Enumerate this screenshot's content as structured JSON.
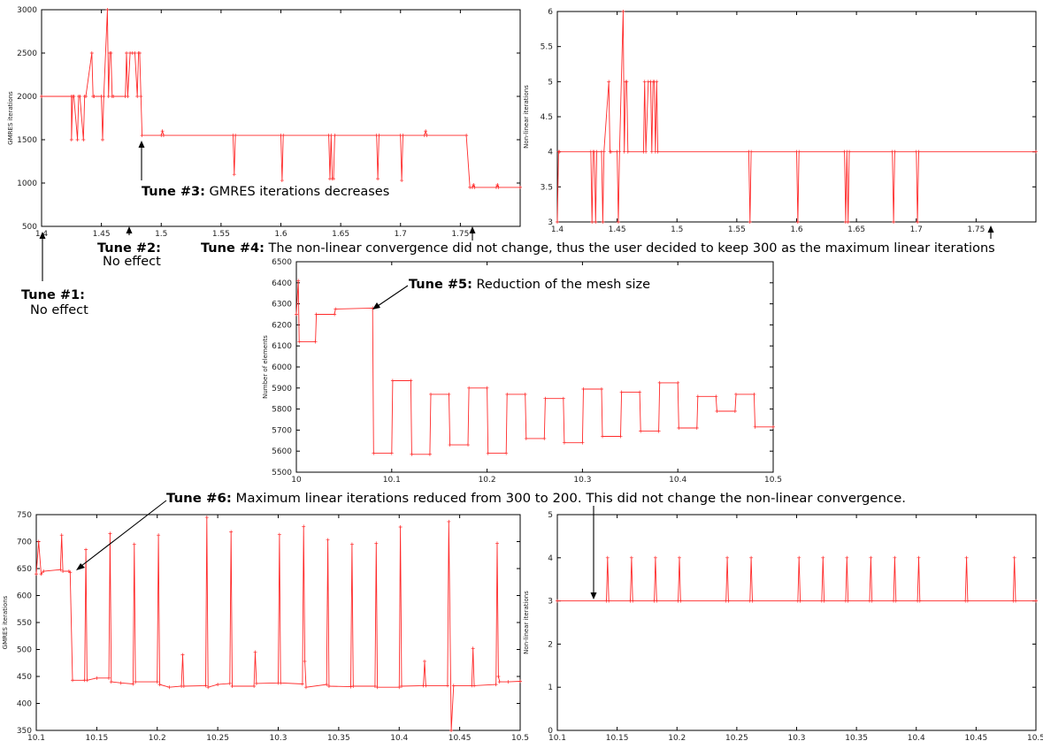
{
  "chart_data": [
    {
      "id": "c1",
      "type": "line",
      "ylabel": "GMRES iterations",
      "xlim": [
        1.4,
        1.8
      ],
      "ylim": [
        500,
        3000
      ],
      "xticks": [
        "1.4",
        "1.45",
        "1.5",
        "1.55",
        "1.6",
        "1.65",
        "1.7",
        "1.75"
      ],
      "yticks": [
        "500",
        "1000",
        "1500",
        "2000",
        "2500",
        "3000"
      ],
      "series": [
        {
          "x": [
            1.4,
            1.425,
            1.425,
            1.426,
            1.427,
            1.43,
            1.431,
            1.432,
            1.435,
            1.436,
            1.437,
            1.442,
            1.443,
            1.444,
            1.45,
            1.451,
            1.452,
            1.455,
            1.456,
            1.457,
            1.458,
            1.459,
            1.46,
            1.47,
            1.471,
            1.472,
            1.474,
            1.476,
            1.478,
            1.48,
            1.481,
            1.482,
            1.483,
            1.484,
            1.5,
            1.501,
            1.502,
            1.56,
            1.561,
            1.562,
            1.6,
            1.601,
            1.602,
            1.64,
            1.641,
            1.642,
            1.643,
            1.644,
            1.645,
            1.68,
            1.681,
            1.682,
            1.7,
            1.701,
            1.702,
            1.72,
            1.721,
            1.722,
            1.755,
            1.758,
            1.76,
            1.761,
            1.762,
            1.78,
            1.781,
            1.782,
            1.8
          ],
          "y": [
            2000,
            2000,
            1500,
            2000,
            2000,
            1500,
            2000,
            2000,
            1500,
            2000,
            2000,
            2500,
            2000,
            2000,
            2000,
            1500,
            2000,
            3000,
            2000,
            2500,
            2500,
            2000,
            2000,
            2000,
            2500,
            2000,
            2500,
            2500,
            2500,
            2000,
            2500,
            2500,
            2000,
            1550,
            1550,
            1600,
            1550,
            1550,
            1100,
            1550,
            1550,
            1030,
            1550,
            1550,
            1050,
            1550,
            1050,
            1050,
            1550,
            1550,
            1050,
            1550,
            1550,
            1030,
            1550,
            1550,
            1600,
            1550,
            1550,
            950,
            950,
            980,
            950,
            950,
            980,
            950,
            950
          ]
        }
      ]
    },
    {
      "id": "c2",
      "type": "line",
      "ylabel": "Non-linear iterations",
      "xlim": [
        1.4,
        1.8
      ],
      "ylim": [
        3,
        6
      ],
      "xticks": [
        "1.4",
        "1.45",
        "1.5",
        "1.55",
        "1.6",
        "1.65",
        "1.7",
        "1.75"
      ],
      "yticks": [
        "3",
        "3.5",
        "4",
        "4.5",
        "5",
        "5.5",
        "6"
      ],
      "series": [
        {
          "x": [
            1.4,
            1.401,
            1.402,
            1.428,
            1.429,
            1.43,
            1.431,
            1.432,
            1.433,
            1.437,
            1.438,
            1.439,
            1.443,
            1.444,
            1.445,
            1.45,
            1.451,
            1.452,
            1.455,
            1.456,
            1.457,
            1.458,
            1.459,
            1.472,
            1.473,
            1.474,
            1.476,
            1.478,
            1.479,
            1.48,
            1.481,
            1.482,
            1.483,
            1.484,
            1.56,
            1.561,
            1.562,
            1.6,
            1.601,
            1.602,
            1.64,
            1.641,
            1.642,
            1.643,
            1.644,
            1.68,
            1.681,
            1.682,
            1.7,
            1.701,
            1.702,
            1.8
          ],
          "y": [
            3,
            4,
            4,
            4,
            3,
            4,
            4,
            3,
            4,
            4,
            3,
            4,
            5,
            4,
            4,
            4,
            3,
            4,
            6,
            4,
            5,
            5,
            4,
            4,
            5,
            4,
            5,
            5,
            4,
            5,
            5,
            4,
            5,
            4,
            4,
            3,
            4,
            4,
            3,
            4,
            4,
            3,
            4,
            3,
            4,
            4,
            3,
            4,
            4,
            3,
            4,
            4
          ]
        }
      ]
    },
    {
      "id": "c3",
      "type": "line",
      "ylabel": "Number of elements",
      "xlim": [
        10,
        10.5
      ],
      "ylim": [
        5500,
        6500
      ],
      "xticks": [
        "10",
        "10.1",
        "10.2",
        "10.3",
        "10.4",
        "10.5"
      ],
      "yticks": [
        "5500",
        "5600",
        "5700",
        "5800",
        "5900",
        "6000",
        "6100",
        "6200",
        "6300",
        "6400",
        "6500"
      ],
      "series": [
        {
          "x": [
            10.0,
            10.002,
            10.003,
            10.02,
            10.021,
            10.04,
            10.041,
            10.08,
            10.081,
            10.1,
            10.101,
            10.12,
            10.121,
            10.14,
            10.141,
            10.16,
            10.161,
            10.18,
            10.181,
            10.2,
            10.201,
            10.22,
            10.221,
            10.24,
            10.241,
            10.26,
            10.261,
            10.28,
            10.281,
            10.3,
            10.301,
            10.32,
            10.321,
            10.34,
            10.341,
            10.36,
            10.361,
            10.38,
            10.381,
            10.4,
            10.401,
            10.42,
            10.421,
            10.44,
            10.441,
            10.46,
            10.461,
            10.48,
            10.481,
            10.5
          ],
          "y": [
            6250,
            6410,
            6120,
            6120,
            6250,
            6250,
            6275,
            6280,
            5590,
            5590,
            5935,
            5935,
            5585,
            5585,
            5870,
            5870,
            5630,
            5630,
            5900,
            5900,
            5590,
            5590,
            5870,
            5870,
            5660,
            5660,
            5850,
            5850,
            5640,
            5640,
            5895,
            5895,
            5670,
            5670,
            5880,
            5880,
            5695,
            5695,
            5925,
            5925,
            5710,
            5710,
            5860,
            5860,
            5790,
            5790,
            5870,
            5870,
            5715,
            5715
          ]
        }
      ]
    },
    {
      "id": "c4",
      "type": "line",
      "ylabel": "GMRES iterations",
      "xlim": [
        10.1,
        10.5
      ],
      "ylim": [
        350,
        750
      ],
      "xticks": [
        "10.1",
        "10.15",
        "10.2",
        "10.25",
        "10.3",
        "10.35",
        "10.4",
        "10.45",
        "10.5"
      ],
      "yticks": [
        "350",
        "400",
        "450",
        "500",
        "550",
        "600",
        "650",
        "700",
        "750"
      ],
      "series": [
        {
          "x": [
            10.1,
            10.102,
            10.104,
            10.106,
            10.12,
            10.121,
            10.122,
            10.127,
            10.128,
            10.13,
            10.14,
            10.141,
            10.142,
            10.15,
            10.16,
            10.161,
            10.162,
            10.17,
            10.18,
            10.181,
            10.182,
            10.2,
            10.201,
            10.202,
            10.21,
            10.22,
            10.221,
            10.222,
            10.24,
            10.241,
            10.242,
            10.25,
            10.26,
            10.261,
            10.262,
            10.28,
            10.281,
            10.282,
            10.3,
            10.301,
            10.302,
            10.32,
            10.321,
            10.322,
            10.323,
            10.34,
            10.341,
            10.342,
            10.36,
            10.361,
            10.362,
            10.38,
            10.381,
            10.382,
            10.4,
            10.401,
            10.402,
            10.42,
            10.421,
            10.422,
            10.44,
            10.441,
            10.443,
            10.445,
            10.46,
            10.461,
            10.462,
            10.48,
            10.481,
            10.482,
            10.483,
            10.49,
            10.5
          ],
          "y": [
            640,
            700,
            640,
            645,
            648,
            712,
            645,
            645,
            643,
            443,
            443,
            685,
            443,
            447,
            447,
            715,
            440,
            438,
            436,
            695,
            440,
            440,
            712,
            435,
            430,
            432,
            490,
            432,
            433,
            745,
            430,
            435,
            437,
            718,
            432,
            432,
            495,
            437,
            438,
            713,
            438,
            436,
            728,
            478,
            430,
            435,
            703,
            432,
            431,
            695,
            432,
            432,
            697,
            430,
            430,
            727,
            432,
            433,
            478,
            433,
            433,
            737,
            350,
            433,
            433,
            502,
            433,
            435,
            697,
            450,
            440,
            440,
            441
          ]
        }
      ]
    },
    {
      "id": "c5",
      "type": "line",
      "ylabel": "Non-linear iterations",
      "xlim": [
        10.1,
        10.5
      ],
      "ylim": [
        0,
        5
      ],
      "xticks": [
        "10.1",
        "10.15",
        "10.2",
        "10.25",
        "10.3",
        "10.35",
        "10.4",
        "10.45",
        "10.5"
      ],
      "yticks": [
        "0",
        "1",
        "2",
        "3",
        "4",
        "5"
      ],
      "series": [
        {
          "x": [
            10.1,
            10.141,
            10.142,
            10.143,
            10.161,
            10.162,
            10.163,
            10.181,
            10.182,
            10.183,
            10.201,
            10.202,
            10.203,
            10.241,
            10.242,
            10.243,
            10.261,
            10.262,
            10.263,
            10.301,
            10.302,
            10.303,
            10.321,
            10.322,
            10.323,
            10.341,
            10.342,
            10.343,
            10.361,
            10.362,
            10.363,
            10.381,
            10.382,
            10.383,
            10.401,
            10.402,
            10.403,
            10.441,
            10.442,
            10.443,
            10.481,
            10.482,
            10.483,
            10.5
          ],
          "y": [
            3,
            3,
            4,
            3,
            3,
            4,
            3,
            3,
            4,
            3,
            3,
            4,
            3,
            3,
            4,
            3,
            3,
            4,
            3,
            3,
            4,
            3,
            3,
            4,
            3,
            3,
            4,
            3,
            3,
            4,
            3,
            3,
            4,
            3,
            3,
            4,
            3,
            3,
            4,
            3,
            3,
            4,
            3,
            3
          ]
        }
      ]
    }
  ],
  "annotations": {
    "tune1": {
      "label": "Tune #1:",
      "text": "No effect"
    },
    "tune2": {
      "label": "Tune #2:",
      "text": "No effect"
    },
    "tune3": {
      "label": "Tune #3:",
      "text": " GMRES iterations decreases"
    },
    "tune4": {
      "label": "Tune #4:",
      "text": " The non-linear convergence did not change, thus the user decided to keep 300 as the maximum linear iterations"
    },
    "tune5": {
      "label": "Tune #5:",
      "text": " Reduction of the mesh size"
    },
    "tune6": {
      "label": "Tune #6:",
      "text": " Maximum linear iterations reduced from 300 to 200. This did not change the non-linear convergence."
    }
  },
  "colors": {
    "series": "#ff2a2a",
    "axis": "#000000"
  }
}
